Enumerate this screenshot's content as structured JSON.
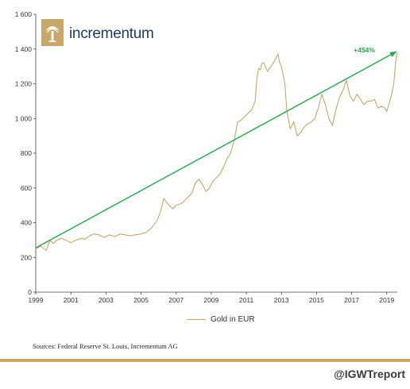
{
  "logo": {
    "text": "incrementum"
  },
  "chart_data": {
    "type": "line",
    "title": "",
    "xlabel": "",
    "ylabel": "",
    "xlim": [
      1999,
      2019.6
    ],
    "ylim": [
      0,
      1600
    ],
    "y_ticks": [
      0,
      200,
      400,
      600,
      800,
      1000,
      1200,
      1400,
      1600
    ],
    "y_tick_labels": [
      "0",
      "200",
      "400",
      "600",
      "800",
      "1 000",
      "1 200",
      "1 400",
      "1 600"
    ],
    "x_ticks": [
      1999,
      2001,
      2003,
      2005,
      2007,
      2009,
      2011,
      2013,
      2015,
      2017,
      2019
    ],
    "x_tick_labels": [
      "1999",
      "2001",
      "2003",
      "2005",
      "2007",
      "2009",
      "2011",
      "2013",
      "2015",
      "2017",
      "2019"
    ],
    "grid": false,
    "legend_position": "bottom-center",
    "series": [
      {
        "name": "Gold in EUR",
        "color": "#c7a76a",
        "x": [
          1999.0,
          1999.3,
          1999.6,
          1999.8,
          2000.0,
          2000.2,
          2000.5,
          2000.8,
          2001.0,
          2001.3,
          2001.6,
          2001.8,
          2002.0,
          2002.3,
          2002.6,
          2002.9,
          2003.2,
          2003.5,
          2003.8,
          2004.1,
          2004.4,
          2004.7,
          2005.0,
          2005.3,
          2005.6,
          2005.9,
          2006.1,
          2006.3,
          2006.5,
          2006.8,
          2007.0,
          2007.3,
          2007.6,
          2007.9,
          2008.1,
          2008.3,
          2008.5,
          2008.7,
          2008.9,
          2009.1,
          2009.3,
          2009.5,
          2009.7,
          2009.9,
          2010.1,
          2010.3,
          2010.5,
          2010.7,
          2010.9,
          2011.1,
          2011.3,
          2011.5,
          2011.6,
          2011.7,
          2011.8,
          2011.9,
          2012.0,
          2012.2,
          2012.4,
          2012.6,
          2012.8,
          2012.9,
          2013.0,
          2013.2,
          2013.3,
          2013.5,
          2013.7,
          2013.9,
          2014.1,
          2014.3,
          2014.5,
          2014.7,
          2014.9,
          2015.1,
          2015.3,
          2015.5,
          2015.7,
          2015.9,
          2016.1,
          2016.3,
          2016.5,
          2016.7,
          2016.9,
          2017.1,
          2017.3,
          2017.5,
          2017.7,
          2017.9,
          2018.1,
          2018.3,
          2018.5,
          2018.7,
          2018.9,
          2019.0,
          2019.2,
          2019.3,
          2019.4,
          2019.5,
          2019.6
        ],
        "values": [
          250,
          265,
          240,
          300,
          280,
          300,
          310,
          295,
          285,
          300,
          310,
          305,
          320,
          335,
          330,
          315,
          330,
          320,
          335,
          330,
          325,
          330,
          335,
          345,
          370,
          410,
          460,
          540,
          510,
          480,
          500,
          510,
          540,
          570,
          630,
          650,
          620,
          580,
          600,
          640,
          660,
          680,
          720,
          770,
          800,
          870,
          980,
          990,
          1010,
          1030,
          1050,
          1100,
          1230,
          1290,
          1280,
          1320,
          1320,
          1270,
          1300,
          1330,
          1370,
          1320,
          1300,
          1200,
          1050,
          940,
          980,
          900,
          920,
          950,
          970,
          980,
          1000,
          1060,
          1140,
          1080,
          1000,
          960,
          1050,
          1120,
          1160,
          1220,
          1130,
          1100,
          1140,
          1110,
          1080,
          1100,
          1100,
          1110,
          1060,
          1070,
          1060,
          1040,
          1110,
          1150,
          1200,
          1320,
          1380
        ]
      }
    ],
    "trendline": {
      "x": [
        1999.0,
        2019.55
      ],
      "values": [
        255,
        1385
      ],
      "color": "#22a94a",
      "annotation": "+454%"
    }
  },
  "legend": {
    "label": "Gold in EUR"
  },
  "footer": {
    "source": "Sources: Federal Reserve St. Louis, Incrementum AG",
    "handle": "@IGWTreport"
  },
  "colors": {
    "gold": "#c7a76a",
    "trend": "#22a94a",
    "navy": "#1e3a5f"
  }
}
